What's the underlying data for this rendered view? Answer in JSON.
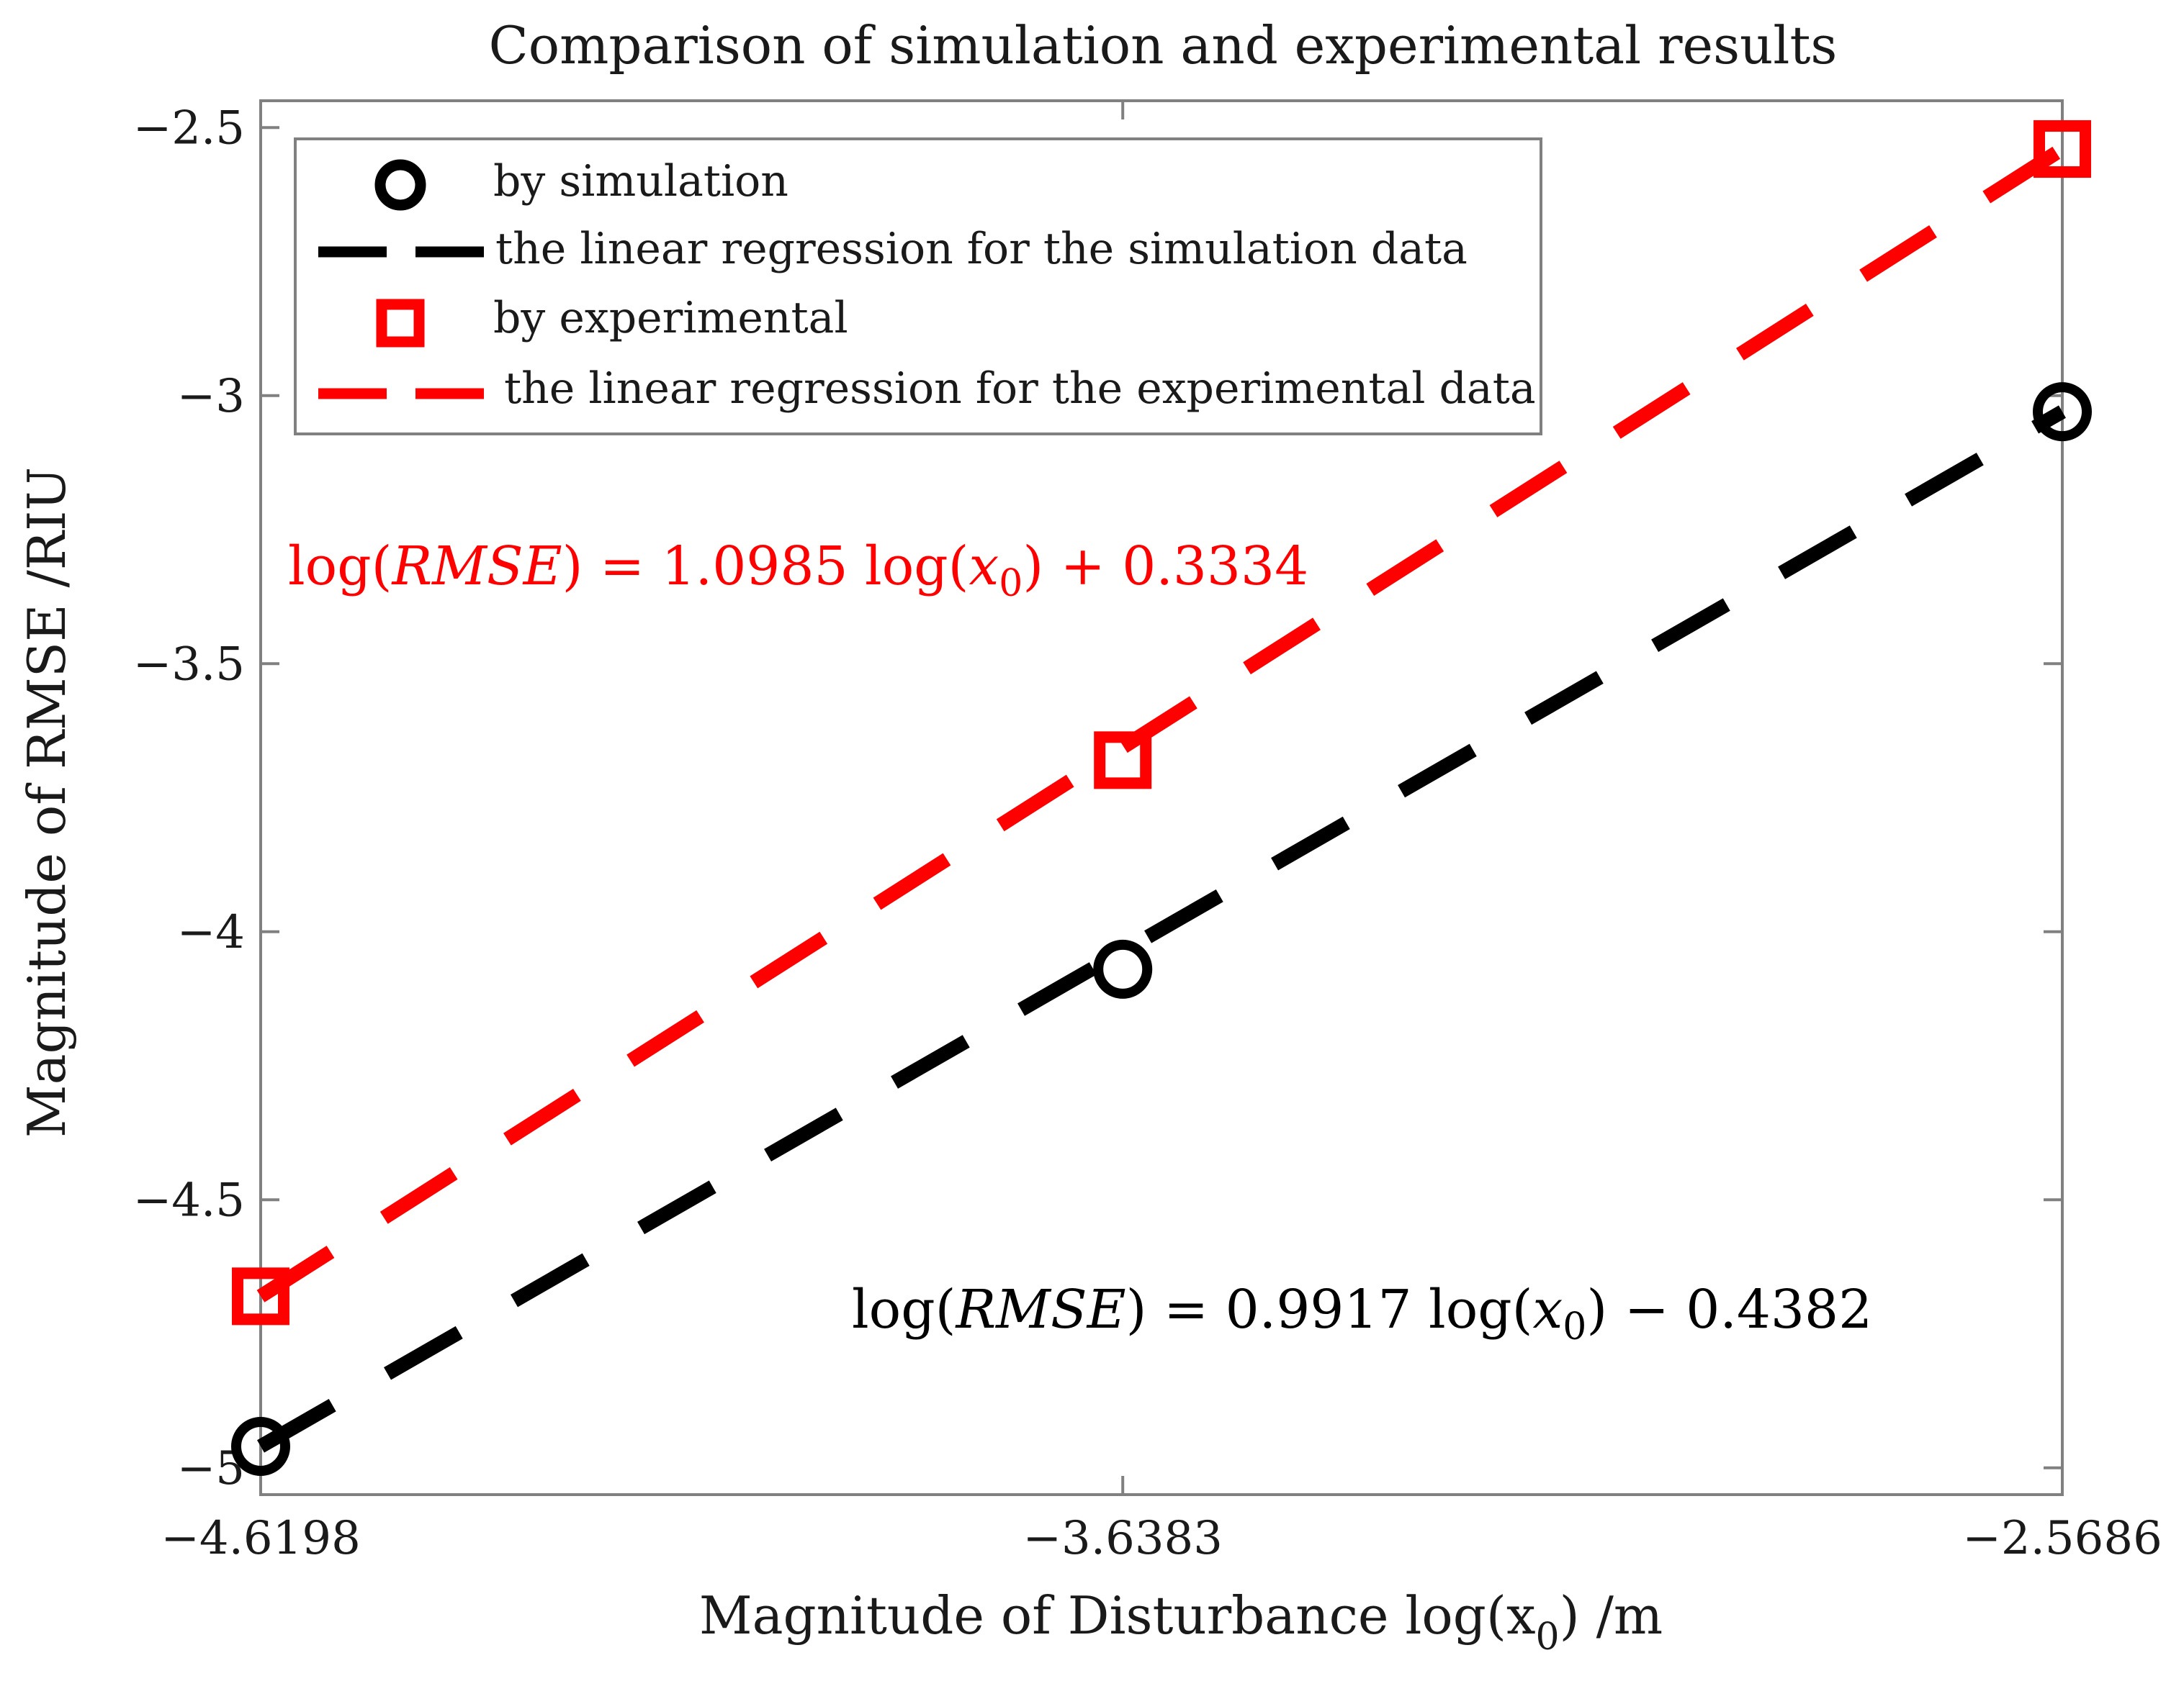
{
  "chart_data": {
    "type": "line",
    "title": "Comparison of simulation and experimental results",
    "xlabel": "Magnitude of Disturbance log(x",
    "xlabel_subscript": "0",
    "xlabel_suffix": ") /m",
    "ylabel": "Magnitude of RMSE /RIU",
    "xlim": [
      -4.6198,
      -2.5686
    ],
    "ylim": [
      -5.05,
      -2.45
    ],
    "x_ticks": [
      -4.6198,
      -3.6383,
      -2.5686
    ],
    "x_tick_labels": [
      "−4.6198",
      "−3.6383",
      "−2.5686"
    ],
    "y_ticks": [
      -5,
      -4.5,
      -4,
      -3.5,
      -3,
      -2.5
    ],
    "y_tick_labels": [
      "−5",
      "−4.5",
      "−4",
      "−3.5",
      "−3",
      "−2.5"
    ],
    "grid": false,
    "legend_position": "top-left",
    "series": [
      {
        "name": "by simulation",
        "kind": "scatter",
        "marker": "circle",
        "color": "#000000",
        "x": [
          -4.6198,
          -3.6383,
          -2.5686
        ],
        "y": [
          -4.96,
          -4.07,
          -3.03
        ]
      },
      {
        "name": "the linear regression for the simulation data",
        "kind": "dashed-line",
        "color": "#000000",
        "slope": 0.9917,
        "intercept": -0.4382,
        "x": [
          -4.6198,
          -2.5686
        ]
      },
      {
        "name": "by experimental",
        "kind": "scatter",
        "marker": "square",
        "color": "#ff0000",
        "x": [
          -4.6198,
          -3.6383,
          -2.5686
        ],
        "y": [
          -4.68,
          -3.68,
          -2.54
        ]
      },
      {
        "name": "the linear regression for the experimental data",
        "kind": "dashed-line",
        "color": "#ff0000",
        "slope": 1.0985,
        "intercept": 0.3334,
        "x": [
          -4.6198,
          -2.5686
        ]
      }
    ],
    "annotations": [
      {
        "series": "experimental",
        "color": "#ff0000",
        "prefix": "log(",
        "var": "RMSE",
        "middle": ") = 1.0985 log(",
        "x_var": "x",
        "x_sub": "0",
        "suffix": ") + 0.3334"
      },
      {
        "series": "simulation",
        "color": "#000000",
        "prefix": "log(",
        "var": "RMSE",
        "middle": ") = 0.9917 log(",
        "x_var": "x",
        "x_sub": "0",
        "suffix": ") − 0.4382"
      }
    ]
  }
}
